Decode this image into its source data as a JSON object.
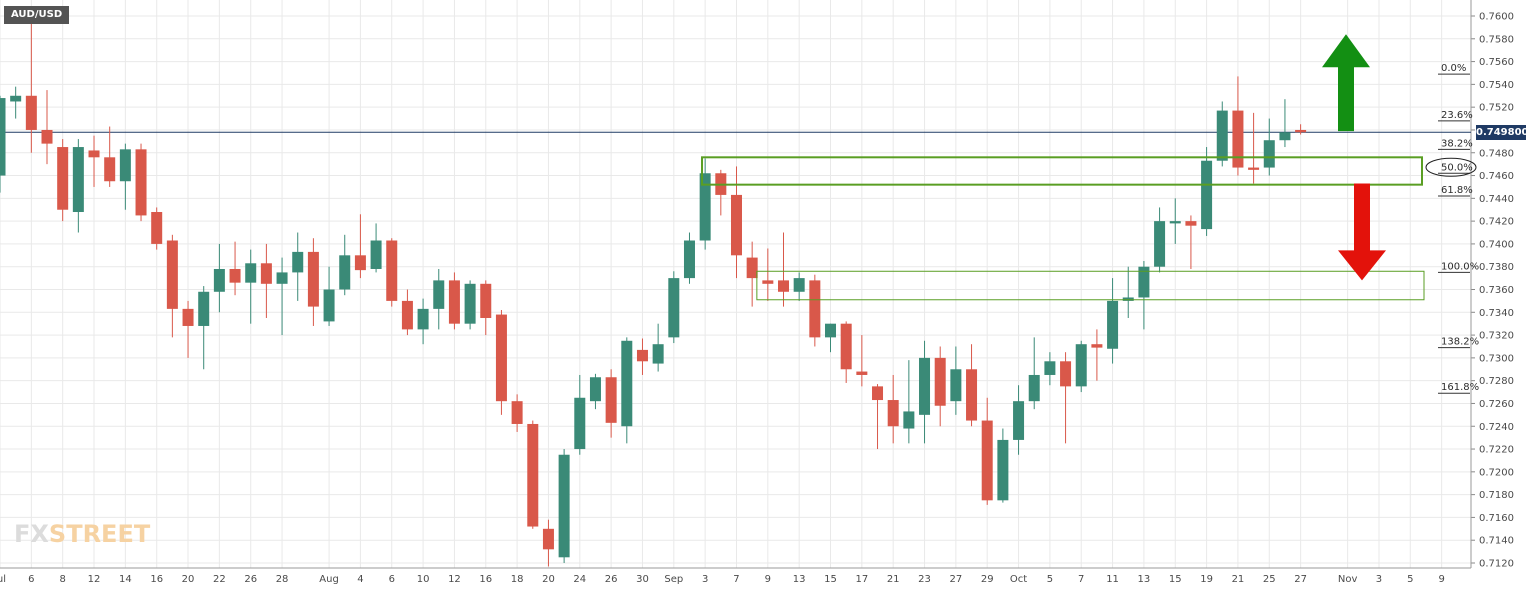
{
  "symbol": "AUD/USD",
  "watermark": {
    "fx": "FX",
    "street": "STREET"
  },
  "current_price_label": "0.749800",
  "colors": {
    "up": "#3a8a77",
    "down": "#d9584a",
    "grid": "#e9e9e9",
    "price_line": "#1f3a64",
    "zone": "#5a9e23",
    "arrow_up": "#138f13",
    "arrow_down": "#e3120b"
  },
  "chart_data": {
    "type": "candlestick",
    "ylim": [
      0.712,
      0.761
    ],
    "y_ticks": [
      "0.7600",
      "0.7580",
      "0.7560",
      "0.7540",
      "0.7520",
      "0.7500",
      "0.7480",
      "0.7460",
      "0.7440",
      "0.7420",
      "0.7400",
      "0.7380",
      "0.7360",
      "0.7340",
      "0.7320",
      "0.7300",
      "0.7280",
      "0.7260",
      "0.7240",
      "0.7220",
      "0.7200",
      "0.7180",
      "0.7160",
      "0.7140",
      "0.7120"
    ],
    "x_ticks": [
      {
        "label": "Jul",
        "idx": 0
      },
      {
        "label": "6",
        "idx": 2
      },
      {
        "label": "8",
        "idx": 4
      },
      {
        "label": "12",
        "idx": 6
      },
      {
        "label": "14",
        "idx": 8
      },
      {
        "label": "16",
        "idx": 10
      },
      {
        "label": "20",
        "idx": 12
      },
      {
        "label": "22",
        "idx": 14
      },
      {
        "label": "26",
        "idx": 16
      },
      {
        "label": "28",
        "idx": 18
      },
      {
        "label": "Aug",
        "idx": 21
      },
      {
        "label": "4",
        "idx": 23
      },
      {
        "label": "6",
        "idx": 25
      },
      {
        "label": "10",
        "idx": 27
      },
      {
        "label": "12",
        "idx": 29
      },
      {
        "label": "16",
        "idx": 31
      },
      {
        "label": "18",
        "idx": 33
      },
      {
        "label": "20",
        "idx": 35
      },
      {
        "label": "24",
        "idx": 37
      },
      {
        "label": "26",
        "idx": 39
      },
      {
        "label": "30",
        "idx": 41
      },
      {
        "label": "Sep",
        "idx": 43
      },
      {
        "label": "3",
        "idx": 45
      },
      {
        "label": "7",
        "idx": 47
      },
      {
        "label": "9",
        "idx": 49
      },
      {
        "label": "13",
        "idx": 51
      },
      {
        "label": "15",
        "idx": 53
      },
      {
        "label": "17",
        "idx": 55
      },
      {
        "label": "21",
        "idx": 57
      },
      {
        "label": "23",
        "idx": 59
      },
      {
        "label": "27",
        "idx": 61
      },
      {
        "label": "29",
        "idx": 63
      },
      {
        "label": "Oct",
        "idx": 65
      },
      {
        "label": "5",
        "idx": 67
      },
      {
        "label": "7",
        "idx": 69
      },
      {
        "label": "11",
        "idx": 71
      },
      {
        "label": "13",
        "idx": 73
      },
      {
        "label": "15",
        "idx": 75
      },
      {
        "label": "19",
        "idx": 77
      },
      {
        "label": "21",
        "idx": 79
      },
      {
        "label": "25",
        "idx": 81
      },
      {
        "label": "27",
        "idx": 83
      },
      {
        "label": "Nov",
        "idx": 86
      },
      {
        "label": "3",
        "idx": 88
      },
      {
        "label": "5",
        "idx": 90
      },
      {
        "label": "9",
        "idx": 92
      }
    ],
    "candles": [
      {
        "o": 0.746,
        "h": 0.753,
        "l": 0.7445,
        "c": 0.7528
      },
      {
        "o": 0.7525,
        "h": 0.7538,
        "l": 0.751,
        "c": 0.753
      },
      {
        "o": 0.753,
        "h": 0.7595,
        "l": 0.748,
        "c": 0.75
      },
      {
        "o": 0.75,
        "h": 0.7535,
        "l": 0.747,
        "c": 0.7488
      },
      {
        "o": 0.7485,
        "h": 0.7492,
        "l": 0.742,
        "c": 0.743
      },
      {
        "o": 0.7428,
        "h": 0.7492,
        "l": 0.741,
        "c": 0.7485
      },
      {
        "o": 0.7482,
        "h": 0.7495,
        "l": 0.745,
        "c": 0.7476
      },
      {
        "o": 0.7476,
        "h": 0.7503,
        "l": 0.745,
        "c": 0.7455
      },
      {
        "o": 0.7455,
        "h": 0.7488,
        "l": 0.743,
        "c": 0.7483
      },
      {
        "o": 0.7483,
        "h": 0.7488,
        "l": 0.742,
        "c": 0.7425
      },
      {
        "o": 0.7428,
        "h": 0.7432,
        "l": 0.7395,
        "c": 0.74
      },
      {
        "o": 0.7403,
        "h": 0.7408,
        "l": 0.7318,
        "c": 0.7343
      },
      {
        "o": 0.7343,
        "h": 0.735,
        "l": 0.73,
        "c": 0.7328
      },
      {
        "o": 0.7328,
        "h": 0.7363,
        "l": 0.729,
        "c": 0.7358
      },
      {
        "o": 0.7358,
        "h": 0.74,
        "l": 0.734,
        "c": 0.7378
      },
      {
        "o": 0.7378,
        "h": 0.7402,
        "l": 0.7355,
        "c": 0.7366
      },
      {
        "o": 0.7366,
        "h": 0.7395,
        "l": 0.733,
        "c": 0.7383
      },
      {
        "o": 0.7383,
        "h": 0.74,
        "l": 0.7335,
        "c": 0.7365
      },
      {
        "o": 0.7365,
        "h": 0.7388,
        "l": 0.732,
        "c": 0.7375
      },
      {
        "o": 0.7375,
        "h": 0.741,
        "l": 0.735,
        "c": 0.7393
      },
      {
        "o": 0.7393,
        "h": 0.7405,
        "l": 0.7328,
        "c": 0.7345
      },
      {
        "o": 0.7332,
        "h": 0.738,
        "l": 0.7328,
        "c": 0.736
      },
      {
        "o": 0.736,
        "h": 0.7408,
        "l": 0.7355,
        "c": 0.739
      },
      {
        "o": 0.739,
        "h": 0.7426,
        "l": 0.737,
        "c": 0.7377
      },
      {
        "o": 0.7378,
        "h": 0.7418,
        "l": 0.7375,
        "c": 0.7403
      },
      {
        "o": 0.7403,
        "h": 0.7405,
        "l": 0.7345,
        "c": 0.735
      },
      {
        "o": 0.735,
        "h": 0.736,
        "l": 0.732,
        "c": 0.7325
      },
      {
        "o": 0.7325,
        "h": 0.7352,
        "l": 0.7312,
        "c": 0.7343
      },
      {
        "o": 0.7343,
        "h": 0.7378,
        "l": 0.7325,
        "c": 0.7368
      },
      {
        "o": 0.7368,
        "h": 0.7375,
        "l": 0.7325,
        "c": 0.733
      },
      {
        "o": 0.733,
        "h": 0.7368,
        "l": 0.7325,
        "c": 0.7365
      },
      {
        "o": 0.7365,
        "h": 0.7368,
        "l": 0.732,
        "c": 0.7335
      },
      {
        "o": 0.7338,
        "h": 0.7342,
        "l": 0.725,
        "c": 0.7262
      },
      {
        "o": 0.7262,
        "h": 0.7268,
        "l": 0.7235,
        "c": 0.7242
      },
      {
        "o": 0.7242,
        "h": 0.7245,
        "l": 0.715,
        "c": 0.7152
      },
      {
        "o": 0.715,
        "h": 0.7158,
        "l": 0.7117,
        "c": 0.7132
      },
      {
        "o": 0.7125,
        "h": 0.722,
        "l": 0.712,
        "c": 0.7215
      },
      {
        "o": 0.722,
        "h": 0.7285,
        "l": 0.7215,
        "c": 0.7265
      },
      {
        "o": 0.7262,
        "h": 0.7286,
        "l": 0.7255,
        "c": 0.7283
      },
      {
        "o": 0.7283,
        "h": 0.729,
        "l": 0.723,
        "c": 0.7243
      },
      {
        "o": 0.724,
        "h": 0.7318,
        "l": 0.7225,
        "c": 0.7315
      },
      {
        "o": 0.7307,
        "h": 0.7317,
        "l": 0.7285,
        "c": 0.7297
      },
      {
        "o": 0.7295,
        "h": 0.733,
        "l": 0.7288,
        "c": 0.7312
      },
      {
        "o": 0.7318,
        "h": 0.7376,
        "l": 0.7313,
        "c": 0.737
      },
      {
        "o": 0.737,
        "h": 0.741,
        "l": 0.7365,
        "c": 0.7403
      },
      {
        "o": 0.7403,
        "h": 0.7475,
        "l": 0.7395,
        "c": 0.7462
      },
      {
        "o": 0.7462,
        "h": 0.7465,
        "l": 0.7425,
        "c": 0.7443
      },
      {
        "o": 0.7443,
        "h": 0.7468,
        "l": 0.737,
        "c": 0.739
      },
      {
        "o": 0.7388,
        "h": 0.7402,
        "l": 0.7345,
        "c": 0.737
      },
      {
        "o": 0.7368,
        "h": 0.7396,
        "l": 0.735,
        "c": 0.7365
      },
      {
        "o": 0.7368,
        "h": 0.741,
        "l": 0.7345,
        "c": 0.7358
      },
      {
        "o": 0.7358,
        "h": 0.7375,
        "l": 0.735,
        "c": 0.737
      },
      {
        "o": 0.7368,
        "h": 0.7373,
        "l": 0.731,
        "c": 0.7318
      },
      {
        "o": 0.7318,
        "h": 0.733,
        "l": 0.7305,
        "c": 0.733
      },
      {
        "o": 0.733,
        "h": 0.7332,
        "l": 0.7278,
        "c": 0.729
      },
      {
        "o": 0.7288,
        "h": 0.732,
        "l": 0.7275,
        "c": 0.7285
      },
      {
        "o": 0.7275,
        "h": 0.7277,
        "l": 0.722,
        "c": 0.7263
      },
      {
        "o": 0.7263,
        "h": 0.7285,
        "l": 0.7225,
        "c": 0.724
      },
      {
        "o": 0.7238,
        "h": 0.7298,
        "l": 0.7225,
        "c": 0.7253
      },
      {
        "o": 0.725,
        "h": 0.7315,
        "l": 0.7225,
        "c": 0.73
      },
      {
        "o": 0.73,
        "h": 0.731,
        "l": 0.724,
        "c": 0.7258
      },
      {
        "o": 0.7262,
        "h": 0.731,
        "l": 0.725,
        "c": 0.729
      },
      {
        "o": 0.729,
        "h": 0.7312,
        "l": 0.724,
        "c": 0.7245
      },
      {
        "o": 0.7245,
        "h": 0.7265,
        "l": 0.7171,
        "c": 0.7175
      },
      {
        "o": 0.7175,
        "h": 0.7238,
        "l": 0.7173,
        "c": 0.7228
      },
      {
        "o": 0.7228,
        "h": 0.7276,
        "l": 0.7215,
        "c": 0.7262
      },
      {
        "o": 0.7262,
        "h": 0.7318,
        "l": 0.7255,
        "c": 0.7285
      },
      {
        "o": 0.7285,
        "h": 0.7305,
        "l": 0.7276,
        "c": 0.7297
      },
      {
        "o": 0.7297,
        "h": 0.7305,
        "l": 0.7225,
        "c": 0.7275
      },
      {
        "o": 0.7275,
        "h": 0.7315,
        "l": 0.727,
        "c": 0.7312
      },
      {
        "o": 0.7312,
        "h": 0.7325,
        "l": 0.728,
        "c": 0.7309
      },
      {
        "o": 0.7308,
        "h": 0.737,
        "l": 0.7295,
        "c": 0.735
      },
      {
        "o": 0.735,
        "h": 0.738,
        "l": 0.7335,
        "c": 0.7353
      },
      {
        "o": 0.7353,
        "h": 0.7385,
        "l": 0.7325,
        "c": 0.738
      },
      {
        "o": 0.738,
        "h": 0.7432,
        "l": 0.7375,
        "c": 0.742
      },
      {
        "o": 0.7418,
        "h": 0.744,
        "l": 0.74,
        "c": 0.742
      },
      {
        "o": 0.742,
        "h": 0.7425,
        "l": 0.7378,
        "c": 0.7416
      },
      {
        "o": 0.7413,
        "h": 0.7485,
        "l": 0.7407,
        "c": 0.7473
      },
      {
        "o": 0.7473,
        "h": 0.7525,
        "l": 0.7468,
        "c": 0.7517
      },
      {
        "o": 0.7517,
        "h": 0.7547,
        "l": 0.746,
        "c": 0.7467
      },
      {
        "o": 0.7467,
        "h": 0.7515,
        "l": 0.7453,
        "c": 0.7465
      },
      {
        "o": 0.7467,
        "h": 0.751,
        "l": 0.746,
        "c": 0.7491
      },
      {
        "o": 0.7491,
        "h": 0.7527,
        "l": 0.7485,
        "c": 0.7498
      },
      {
        "o": 0.75,
        "h": 0.7505,
        "l": 0.7496,
        "c": 0.7498
      }
    ],
    "current_price": 0.7498,
    "fibonacci": [
      {
        "label": "0.0%",
        "value": 0.7549
      },
      {
        "label": "23.6%",
        "value": 0.7508
      },
      {
        "label": "38.2%",
        "value": 0.7483
      },
      {
        "label": "50.0%",
        "value": 0.7462
      },
      {
        "label": "61.8%",
        "value": 0.7442
      },
      {
        "label": "100.0%",
        "value": 0.7375
      },
      {
        "label": "138.2%",
        "value": 0.7309
      },
      {
        "label": "161.8%",
        "value": 0.7269
      }
    ],
    "zones": [
      {
        "from_idx": 44.8,
        "to": 1422,
        "y_top": 0.7476,
        "y_bottom": 0.7452,
        "weight": "thick"
      },
      {
        "from_idx": 48.3,
        "to": 1424,
        "y_top": 0.7376,
        "y_bottom": 0.7351,
        "weight": "thin"
      }
    ],
    "arrows": [
      {
        "direction": "up",
        "tip": 0.7584,
        "tail": 0.7499
      },
      {
        "direction": "down",
        "tip": 0.7368,
        "tail": 0.7453
      }
    ]
  }
}
